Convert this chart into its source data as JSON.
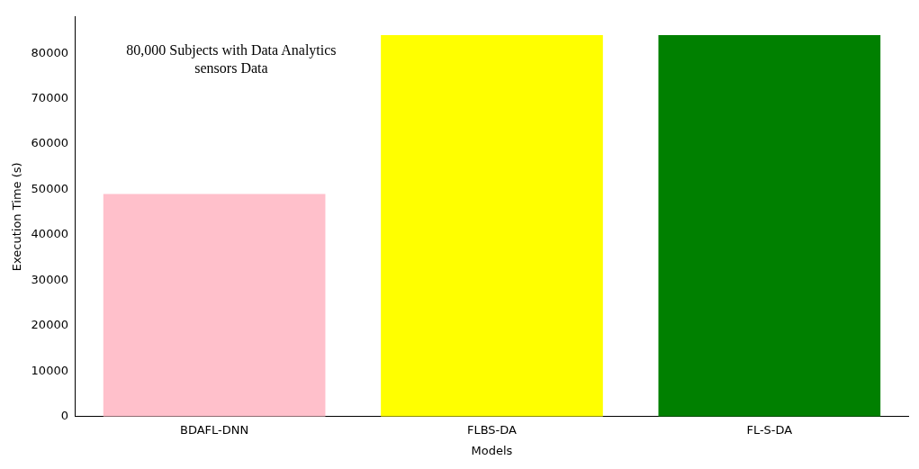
{
  "chart_data": {
    "type": "bar",
    "xlabel": "Models",
    "ylabel": "Execution Time (s)",
    "categories": [
      "BDAFL-DNN",
      "FLBS-DA",
      "FL-S-DA"
    ],
    "values": [
      49000,
      84000,
      84000
    ],
    "colors": [
      "#ffc0cb",
      "#ffff00",
      "#008000"
    ],
    "ylim": [
      0,
      88000
    ],
    "yticks": [
      0,
      10000,
      20000,
      30000,
      40000,
      50000,
      60000,
      70000,
      80000
    ],
    "grid": false,
    "legend": false,
    "annotations": [
      "80,000 Subjects with Data Analytics sensors Data"
    ]
  }
}
